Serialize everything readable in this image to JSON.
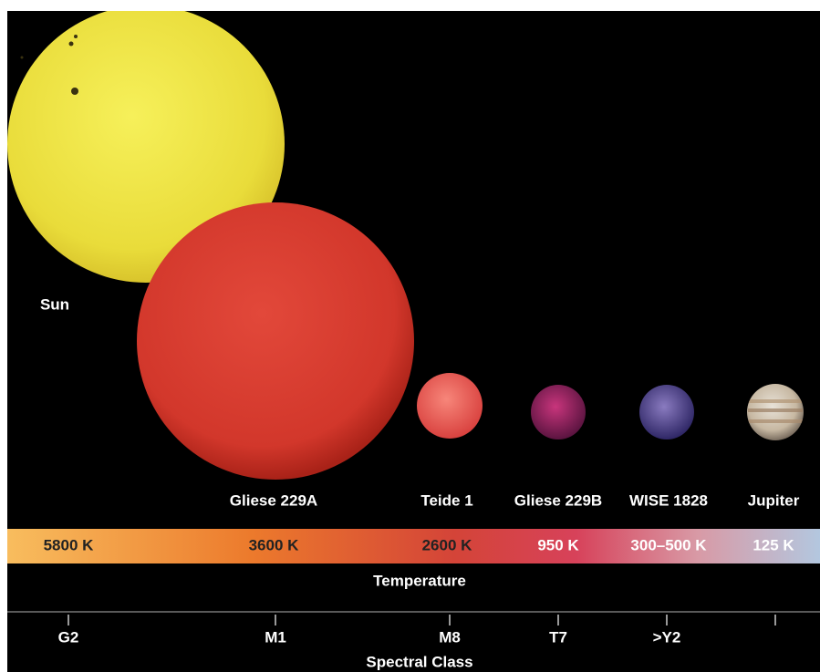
{
  "bodies": [
    {
      "name": "Sun",
      "temperature": "5800 K",
      "spectral_class": "G2"
    },
    {
      "name": "Gliese 229A",
      "temperature": "3600 K",
      "spectral_class": "M1"
    },
    {
      "name": "Teide 1",
      "temperature": "2600 K",
      "spectral_class": "M8"
    },
    {
      "name": "Gliese 229B",
      "temperature": "950 K",
      "spectral_class": "T7"
    },
    {
      "name": "WISE 1828",
      "temperature": "300–500 K",
      "spectral_class": ">Y2"
    },
    {
      "name": "Jupiter",
      "temperature": "125 K",
      "spectral_class": null
    }
  ],
  "temperature_axis": "Temperature",
  "spectral_axis": "Spectral Class"
}
